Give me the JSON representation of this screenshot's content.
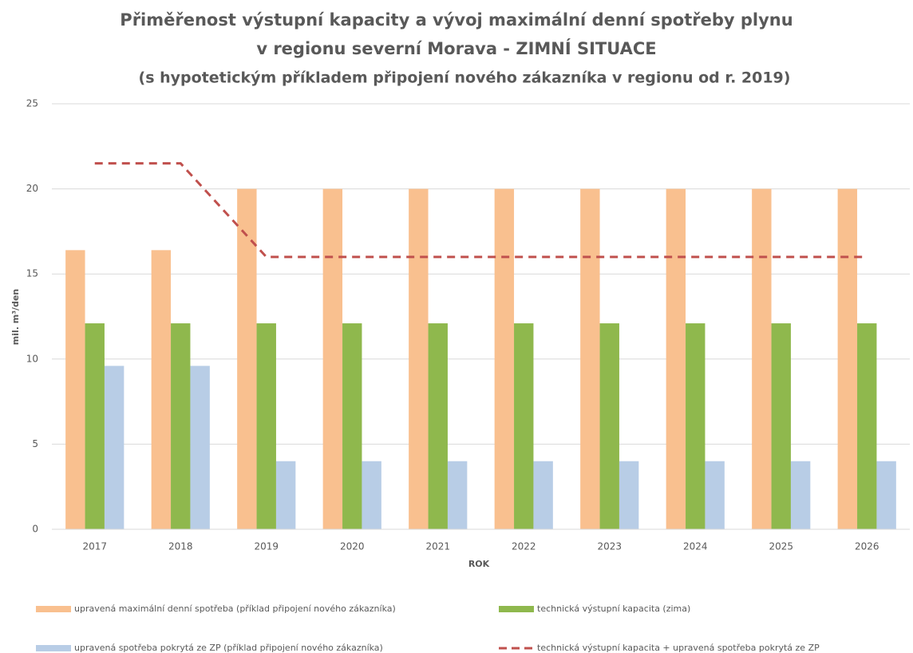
{
  "chart_data": {
    "type": "bar",
    "title": [
      "Přiměřenost výstupní kapacity a vývoj maximální denní spotřeby plynu",
      "v regionu severní Morava - ZIMNÍ SITUACE"
    ],
    "subtitle": "(s hypotetickým příkladem připojení nového zákazníka v regionu od r. 2019)",
    "x_label": "ROK",
    "y_label": "mil. m³/den",
    "categories": [
      "2017",
      "2018",
      "2019",
      "2020",
      "2021",
      "2022",
      "2023",
      "2024",
      "2025",
      "2026"
    ],
    "series": [
      {
        "name": "upravená maximální denní spotřeba (příklad připojení nového zákazníka)",
        "type": "bar",
        "color": "#f9c08f",
        "values": [
          16.4,
          16.4,
          20,
          20,
          20,
          20,
          20,
          20,
          20,
          20
        ]
      },
      {
        "name": "technická výstupní kapacita (zima)",
        "type": "bar",
        "color": "#8fb84d",
        "values": [
          12.1,
          12.1,
          12.1,
          12.1,
          12.1,
          12.1,
          12.1,
          12.1,
          12.1,
          12.1
        ]
      },
      {
        "name": "upravená spotřeba pokrytá ze ZP (příklad připojení nového zákazníka)",
        "type": "bar",
        "color": "#b8cde6",
        "values": [
          9.6,
          9.6,
          4,
          4,
          4,
          4,
          4,
          4,
          4,
          4
        ]
      },
      {
        "name": "technická výstupní kapacita + upravená spotřeba pokrytá ze ZP",
        "type": "line",
        "color": "#c0504d",
        "values": [
          21.5,
          21.5,
          16,
          16,
          16,
          16,
          16,
          16,
          16,
          16
        ]
      }
    ],
    "ylim": [
      0,
      25
    ],
    "yticks": [
      0,
      5,
      10,
      15,
      20,
      25
    ],
    "grid": true
  }
}
